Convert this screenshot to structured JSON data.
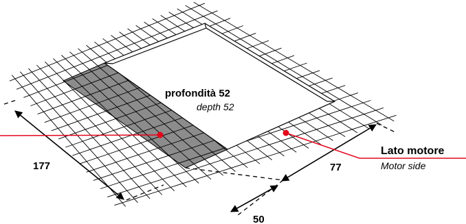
{
  "depth": {
    "label_it": "profondità 52",
    "label_en": "depth 52"
  },
  "motor_side": {
    "label_it": "Lato motore",
    "label_en": "Motor side"
  },
  "dimensions": {
    "length": "177",
    "width": "77",
    "offset": "50"
  },
  "colors": {
    "lines": "#000000",
    "shaded_area": "#8c8c8c",
    "leader_lines": "#e4061b",
    "markers": "#e4061b"
  }
}
